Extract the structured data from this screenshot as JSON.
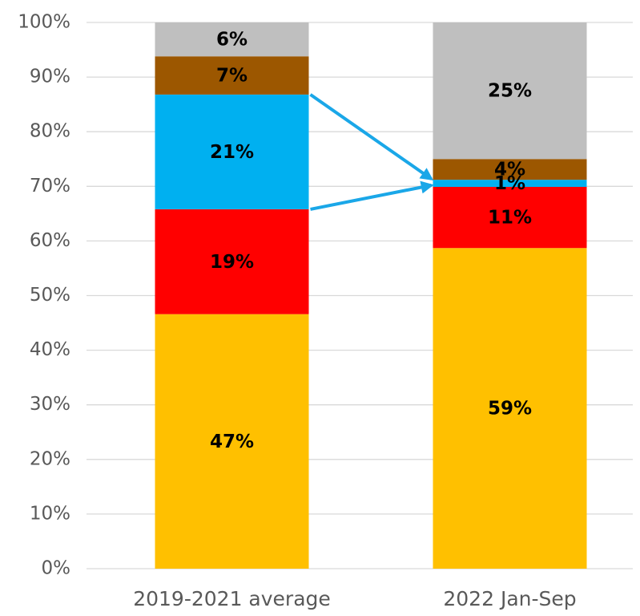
{
  "chart_data": {
    "type": "stacked_bar",
    "categories": [
      "2019-2021 average",
      "2022 Jan-Sep"
    ],
    "series": [
      {
        "color": "#FFC000",
        "values": [
          46.6,
          58.7
        ],
        "value_labels": [
          "47%",
          "59%"
        ]
      },
      {
        "color": "#FF0000",
        "values": [
          19.2,
          11.2
        ],
        "value_labels": [
          "19%",
          "11%"
        ]
      },
      {
        "color": "#00B0F0",
        "values": [
          21,
          1.3
        ],
        "value_labels": [
          "21%",
          "1%"
        ]
      },
      {
        "color": "#9C5700",
        "values": [
          7,
          3.8
        ],
        "value_labels": [
          "7%",
          "4%"
        ]
      },
      {
        "color": "#BFBFBF",
        "values": [
          6.2,
          25
        ],
        "value_labels": [
          "6%",
          "25%"
        ]
      }
    ],
    "ylim": [
      0,
      100
    ],
    "yticks": [
      {
        "value": 0,
        "label": "0%"
      },
      {
        "value": 10,
        "label": "10%"
      },
      {
        "value": 20,
        "label": "20%"
      },
      {
        "value": 30,
        "label": "30%"
      },
      {
        "value": 40,
        "label": "40%"
      },
      {
        "value": 50,
        "label": "50%"
      },
      {
        "value": 60,
        "label": "60%"
      },
      {
        "value": 70,
        "label": "70%"
      },
      {
        "value": 80,
        "label": "80%"
      },
      {
        "value": 90,
        "label": "90%"
      },
      {
        "value": 100,
        "label": "100%"
      }
    ],
    "grid": true
  }
}
